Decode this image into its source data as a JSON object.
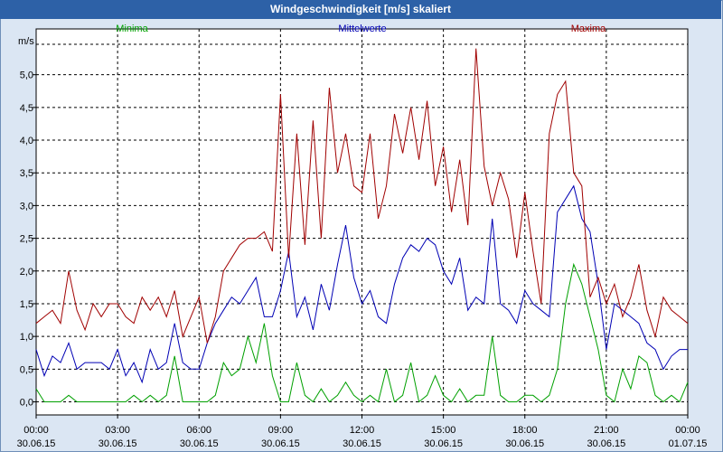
{
  "window": {
    "title": "Windgeschwindigkeit [m/s] skaliert"
  },
  "chart_data": {
    "type": "line",
    "title": "Windgeschwindigkeit [m/s] skaliert",
    "ylabel": "m/s",
    "ylim": [
      -0.2,
      5.7
    ],
    "yticks": [
      "0,0",
      "0,5",
      "1,0",
      "1,5",
      "2,0",
      "2,5",
      "3,0",
      "3,5",
      "4,0",
      "4,5",
      "5,0"
    ],
    "xlim": [
      0,
      24
    ],
    "xticks": [
      {
        "time": "00:00",
        "date": "30.06.15"
      },
      {
        "time": "03:00",
        "date": "30.06.15"
      },
      {
        "time": "06:00",
        "date": "30.06.15"
      },
      {
        "time": "09:00",
        "date": "30.06.15"
      },
      {
        "time": "12:00",
        "date": "30.06.15"
      },
      {
        "time": "15:00",
        "date": "30.06.15"
      },
      {
        "time": "18:00",
        "date": "30.06.15"
      },
      {
        "time": "21:00",
        "date": "30.06.15"
      },
      {
        "time": "00:00",
        "date": "01.07.15"
      }
    ],
    "grid": true,
    "legend_position": "top",
    "series": [
      {
        "name": "Minima",
        "color": "#00a000",
        "x": [
          0,
          0.3,
          0.6,
          0.9,
          1.2,
          1.5,
          1.8,
          2.1,
          2.4,
          2.7,
          3.0,
          3.3,
          3.6,
          3.9,
          4.2,
          4.5,
          4.8,
          5.1,
          5.4,
          5.7,
          6.0,
          6.3,
          6.6,
          6.9,
          7.2,
          7.5,
          7.8,
          8.1,
          8.4,
          8.7,
          9.0,
          9.3,
          9.6,
          9.9,
          10.2,
          10.5,
          10.8,
          11.1,
          11.4,
          11.7,
          12.0,
          12.3,
          12.6,
          12.9,
          13.2,
          13.5,
          13.8,
          14.1,
          14.4,
          14.7,
          15.0,
          15.3,
          15.6,
          15.9,
          16.2,
          16.5,
          16.8,
          17.1,
          17.4,
          17.7,
          18.0,
          18.3,
          18.6,
          18.9,
          19.2,
          19.5,
          19.8,
          20.1,
          20.4,
          20.7,
          21.0,
          21.3,
          21.6,
          21.9,
          22.2,
          22.5,
          22.8,
          23.1,
          23.4,
          23.7,
          24.0
        ],
        "values": [
          0.2,
          0,
          0,
          0,
          0.1,
          0,
          0,
          0,
          0,
          0,
          0,
          0,
          0.1,
          0,
          0.1,
          0,
          0.1,
          0.7,
          0,
          0,
          0,
          0,
          0.1,
          0.6,
          0.4,
          0.5,
          1.0,
          0.6,
          1.2,
          0.4,
          0,
          0,
          0.6,
          0.1,
          0,
          0.2,
          0,
          0.1,
          0.3,
          0.1,
          0,
          0.1,
          0,
          0.5,
          0,
          0.1,
          0.6,
          0,
          0.1,
          0.4,
          0.1,
          0,
          0.2,
          0,
          0.1,
          0.1,
          1.0,
          0.1,
          0,
          0,
          0.1,
          0.1,
          0,
          0.1,
          0.5,
          1.5,
          2.1,
          1.8,
          1.3,
          0.8,
          0.1,
          0,
          0.5,
          0.2,
          0.7,
          0.6,
          0.1,
          0,
          0.1,
          0,
          0.3
        ]
      },
      {
        "name": "Mittelwerte",
        "color": "#0000b4",
        "x": [
          0,
          0.3,
          0.6,
          0.9,
          1.2,
          1.5,
          1.8,
          2.1,
          2.4,
          2.7,
          3.0,
          3.3,
          3.6,
          3.9,
          4.2,
          4.5,
          4.8,
          5.1,
          5.4,
          5.7,
          6.0,
          6.3,
          6.6,
          6.9,
          7.2,
          7.5,
          7.8,
          8.1,
          8.4,
          8.7,
          9.0,
          9.3,
          9.6,
          9.9,
          10.2,
          10.5,
          10.8,
          11.1,
          11.4,
          11.7,
          12.0,
          12.3,
          12.6,
          12.9,
          13.2,
          13.5,
          13.8,
          14.1,
          14.4,
          14.7,
          15.0,
          15.3,
          15.6,
          15.9,
          16.2,
          16.5,
          16.8,
          17.1,
          17.4,
          17.7,
          18.0,
          18.3,
          18.6,
          18.9,
          19.2,
          19.5,
          19.8,
          20.1,
          20.4,
          20.7,
          21.0,
          21.3,
          21.6,
          21.9,
          22.2,
          22.5,
          22.8,
          23.1,
          23.4,
          23.7,
          24.0
        ],
        "values": [
          0.8,
          0.4,
          0.7,
          0.6,
          0.9,
          0.5,
          0.6,
          0.6,
          0.6,
          0.5,
          0.8,
          0.4,
          0.6,
          0.3,
          0.8,
          0.5,
          0.6,
          1.2,
          0.6,
          0.5,
          0.5,
          0.9,
          1.2,
          1.4,
          1.6,
          1.5,
          1.7,
          1.9,
          1.3,
          1.3,
          1.7,
          2.3,
          1.3,
          1.6,
          1.1,
          1.8,
          1.4,
          2.1,
          2.7,
          1.9,
          1.5,
          1.7,
          1.3,
          1.2,
          1.8,
          2.2,
          2.4,
          2.3,
          2.5,
          2.4,
          2.0,
          1.8,
          2.2,
          1.4,
          1.6,
          1.5,
          2.8,
          1.5,
          1.4,
          1.2,
          1.7,
          1.5,
          1.4,
          1.3,
          2.9,
          3.1,
          3.3,
          2.8,
          2.6,
          1.8,
          0.8,
          1.5,
          1.4,
          1.3,
          1.2,
          0.9,
          0.8,
          0.5,
          0.7,
          0.8,
          0.8
        ]
      },
      {
        "name": "Maxima",
        "color": "#a00000",
        "x": [
          0,
          0.3,
          0.6,
          0.9,
          1.2,
          1.5,
          1.8,
          2.1,
          2.4,
          2.7,
          3.0,
          3.3,
          3.6,
          3.9,
          4.2,
          4.5,
          4.8,
          5.1,
          5.4,
          5.7,
          6.0,
          6.3,
          6.6,
          6.9,
          7.2,
          7.5,
          7.8,
          8.1,
          8.4,
          8.7,
          9.0,
          9.3,
          9.6,
          9.9,
          10.2,
          10.5,
          10.8,
          11.1,
          11.4,
          11.7,
          12.0,
          12.3,
          12.6,
          12.9,
          13.2,
          13.5,
          13.8,
          14.1,
          14.4,
          14.7,
          15.0,
          15.3,
          15.6,
          15.9,
          16.2,
          16.5,
          16.8,
          17.1,
          17.4,
          17.7,
          18.0,
          18.3,
          18.6,
          18.9,
          19.2,
          19.5,
          19.8,
          20.1,
          20.4,
          20.7,
          21.0,
          21.3,
          21.6,
          21.9,
          22.2,
          22.5,
          22.8,
          23.1,
          23.4,
          23.7,
          24.0
        ],
        "values": [
          1.2,
          1.3,
          1.4,
          1.2,
          2.0,
          1.4,
          1.1,
          1.5,
          1.3,
          1.5,
          1.5,
          1.3,
          1.2,
          1.6,
          1.4,
          1.6,
          1.3,
          1.7,
          1.0,
          1.3,
          1.6,
          0.9,
          1.3,
          2.0,
          2.2,
          2.4,
          2.5,
          2.5,
          2.6,
          2.3,
          4.7,
          2.2,
          4.1,
          2.4,
          4.3,
          2.5,
          4.8,
          3.5,
          4.1,
          3.3,
          3.2,
          4.1,
          2.8,
          3.3,
          4.4,
          3.8,
          4.5,
          3.7,
          4.6,
          3.3,
          3.9,
          2.9,
          3.7,
          2.7,
          5.4,
          3.6,
          3.0,
          3.5,
          3.1,
          2.2,
          3.2,
          2.3,
          1.5,
          4.1,
          4.7,
          4.9,
          3.5,
          3.3,
          1.6,
          1.9,
          1.5,
          1.8,
          1.3,
          1.6,
          2.1,
          1.4,
          1.0,
          1.6,
          1.4,
          1.3,
          1.2
        ]
      }
    ]
  }
}
